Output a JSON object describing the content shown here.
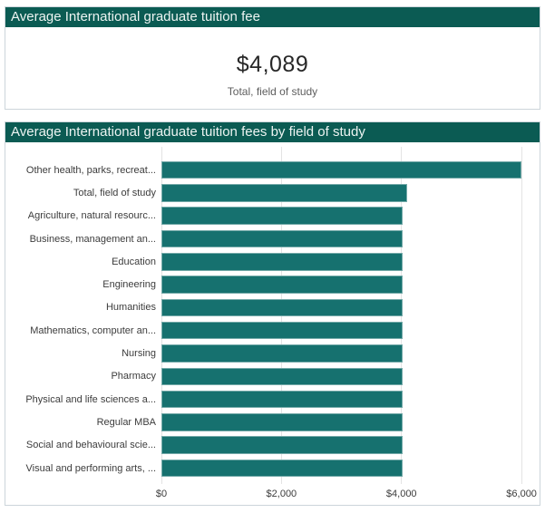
{
  "accent_colors": {
    "header_bg": "#0b5b53",
    "bar": "#16716f"
  },
  "kpi_panel": {
    "title": "Average International graduate tuition fee",
    "value": "$4,089",
    "label": "Total, field of study"
  },
  "chart_panel": {
    "title": "Average International graduate tuition fees by field of study"
  },
  "chart_data": {
    "type": "bar",
    "orientation": "horizontal",
    "title": "Average International graduate tuition fees by field of study",
    "xlabel": "",
    "ylabel": "",
    "grid": true,
    "legend": false,
    "xlim": [
      0,
      6240
    ],
    "categories": [
      "Other health, parks, recreat...",
      "Total, field of study",
      "Agriculture, natural resourc...",
      "Business, management an...",
      "Education",
      "Engineering",
      "Humanities",
      "Mathematics, computer an...",
      "Nursing",
      "Pharmacy",
      "Physical and life sciences a...",
      "Regular MBA",
      "Social and behavioural scie...",
      "Visual and performing arts, ..."
    ],
    "values": [
      6000,
      4089,
      4026,
      4026,
      4026,
      4026,
      4026,
      4026,
      4026,
      4026,
      4026,
      4026,
      4026,
      4026
    ],
    "ticks": [
      {
        "value": 0,
        "label": "$0"
      },
      {
        "value": 2000,
        "label": "$2,000"
      },
      {
        "value": 4000,
        "label": "$4,000"
      },
      {
        "value": 6000,
        "label": "$6,000"
      }
    ]
  }
}
